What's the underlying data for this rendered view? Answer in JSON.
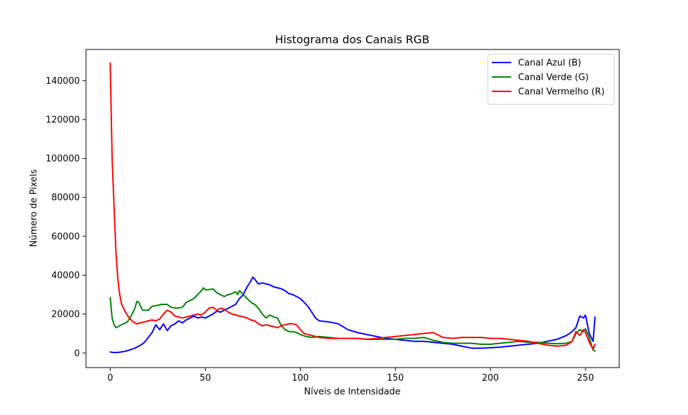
{
  "chart_data": {
    "type": "line",
    "title": "Histograma dos Canais RGB",
    "xlabel": "Níveis de Intensidade",
    "ylabel": "Número de Pixels",
    "xlim": [
      -12.75,
      267.75
    ],
    "ylim": [
      -7500,
      156000
    ],
    "xticks": [
      0,
      50,
      100,
      150,
      200,
      250
    ],
    "xtick_labels": [
      "0",
      "50",
      "100",
      "150",
      "200",
      "250"
    ],
    "yticks": [
      0,
      20000,
      40000,
      60000,
      80000,
      100000,
      120000,
      140000
    ],
    "ytick_labels": [
      "0",
      "20000",
      "40000",
      "60000",
      "80000",
      "100000",
      "120000",
      "140000"
    ],
    "grid": false,
    "legend_position": "top-right",
    "series": [
      {
        "name": "Canal Azul (B)",
        "color": "#0000ff",
        "points": [
          [
            0,
            500
          ],
          [
            2,
            200
          ],
          [
            5,
            400
          ],
          [
            8,
            900
          ],
          [
            10,
            1500
          ],
          [
            13,
            2500
          ],
          [
            16,
            4000
          ],
          [
            18,
            5500
          ],
          [
            20,
            8000
          ],
          [
            22,
            10500
          ],
          [
            24,
            14500
          ],
          [
            26,
            12000
          ],
          [
            28,
            15000
          ],
          [
            30,
            11500
          ],
          [
            32,
            14000
          ],
          [
            34,
            15000
          ],
          [
            36,
            16500
          ],
          [
            38,
            15500
          ],
          [
            40,
            17000
          ],
          [
            42,
            18000
          ],
          [
            44,
            19000
          ],
          [
            46,
            18000
          ],
          [
            48,
            18500
          ],
          [
            50,
            18000
          ],
          [
            52,
            19000
          ],
          [
            54,
            20000
          ],
          [
            56,
            21500
          ],
          [
            58,
            21000
          ],
          [
            60,
            22000
          ],
          [
            62,
            23000
          ],
          [
            64,
            24000
          ],
          [
            66,
            25000
          ],
          [
            68,
            28000
          ],
          [
            70,
            30000
          ],
          [
            72,
            34000
          ],
          [
            74,
            37000
          ],
          [
            75,
            39000
          ],
          [
            76,
            38000
          ],
          [
            78,
            35500
          ],
          [
            80,
            36000
          ],
          [
            82,
            35500
          ],
          [
            84,
            35000
          ],
          [
            86,
            34000
          ],
          [
            88,
            33500
          ],
          [
            90,
            33000
          ],
          [
            92,
            32000
          ],
          [
            94,
            30500
          ],
          [
            96,
            30000
          ],
          [
            98,
            29000
          ],
          [
            100,
            28000
          ],
          [
            102,
            26000
          ],
          [
            104,
            24000
          ],
          [
            106,
            21000
          ],
          [
            108,
            18000
          ],
          [
            110,
            16500
          ],
          [
            115,
            16000
          ],
          [
            120,
            15000
          ],
          [
            125,
            12000
          ],
          [
            130,
            10500
          ],
          [
            135,
            9500
          ],
          [
            140,
            8500
          ],
          [
            145,
            7500
          ],
          [
            150,
            7000
          ],
          [
            155,
            6500
          ],
          [
            160,
            6000
          ],
          [
            165,
            6000
          ],
          [
            170,
            5500
          ],
          [
            175,
            5000
          ],
          [
            180,
            4500
          ],
          [
            185,
            3500
          ],
          [
            190,
            2500
          ],
          [
            195,
            2500
          ],
          [
            200,
            2700
          ],
          [
            205,
            3000
          ],
          [
            210,
            3500
          ],
          [
            215,
            4000
          ],
          [
            220,
            4500
          ],
          [
            225,
            5000
          ],
          [
            230,
            6000
          ],
          [
            235,
            7000
          ],
          [
            240,
            9000
          ],
          [
            243,
            11000
          ],
          [
            245,
            13000
          ],
          [
            247,
            19000
          ],
          [
            249,
            18000
          ],
          [
            250,
            19500
          ],
          [
            252,
            10000
          ],
          [
            254,
            6000
          ],
          [
            255,
            18500
          ]
        ]
      },
      {
        "name": "Canal Verde (G)",
        "color": "#008000",
        "points": [
          [
            0,
            28500
          ],
          [
            1,
            18000
          ],
          [
            2,
            14500
          ],
          [
            3,
            13000
          ],
          [
            5,
            14000
          ],
          [
            7,
            15000
          ],
          [
            9,
            16000
          ],
          [
            11,
            19000
          ],
          [
            13,
            23000
          ],
          [
            14,
            26500
          ],
          [
            15,
            26000
          ],
          [
            17,
            22000
          ],
          [
            20,
            22000
          ],
          [
            22,
            24000
          ],
          [
            25,
            24500
          ],
          [
            27,
            25000
          ],
          [
            30,
            25000
          ],
          [
            32,
            23500
          ],
          [
            35,
            23000
          ],
          [
            38,
            23500
          ],
          [
            40,
            26000
          ],
          [
            42,
            27000
          ],
          [
            44,
            28000
          ],
          [
            46,
            30000
          ],
          [
            48,
            32000
          ],
          [
            49,
            33500
          ],
          [
            50,
            32500
          ],
          [
            52,
            32500
          ],
          [
            54,
            33000
          ],
          [
            56,
            31000
          ],
          [
            58,
            30000
          ],
          [
            60,
            29000
          ],
          [
            62,
            30000
          ],
          [
            64,
            30500
          ],
          [
            66,
            31500
          ],
          [
            67,
            30000
          ],
          [
            68,
            32000
          ],
          [
            70,
            30000
          ],
          [
            72,
            28000
          ],
          [
            74,
            26000
          ],
          [
            76,
            25000
          ],
          [
            78,
            23000
          ],
          [
            80,
            20000
          ],
          [
            82,
            18000
          ],
          [
            84,
            19500
          ],
          [
            86,
            18500
          ],
          [
            88,
            18000
          ],
          [
            90,
            14000
          ],
          [
            92,
            12000
          ],
          [
            94,
            11000
          ],
          [
            96,
            11000
          ],
          [
            98,
            10500
          ],
          [
            100,
            9500
          ],
          [
            103,
            8500
          ],
          [
            106,
            8000
          ],
          [
            110,
            8500
          ],
          [
            115,
            8000
          ],
          [
            120,
            7500
          ],
          [
            125,
            7500
          ],
          [
            130,
            7500
          ],
          [
            135,
            7000
          ],
          [
            140,
            7000
          ],
          [
            145,
            7000
          ],
          [
            150,
            7000
          ],
          [
            155,
            7500
          ],
          [
            160,
            7500
          ],
          [
            165,
            8000
          ],
          [
            170,
            6500
          ],
          [
            175,
            5500
          ],
          [
            180,
            5000
          ],
          [
            185,
            5000
          ],
          [
            190,
            5000
          ],
          [
            195,
            4500
          ],
          [
            200,
            4500
          ],
          [
            205,
            5000
          ],
          [
            210,
            5500
          ],
          [
            215,
            6000
          ],
          [
            220,
            5500
          ],
          [
            225,
            5500
          ],
          [
            230,
            5000
          ],
          [
            235,
            4800
          ],
          [
            240,
            5000
          ],
          [
            243,
            6000
          ],
          [
            245,
            10000
          ],
          [
            247,
            12000
          ],
          [
            249,
            11000
          ],
          [
            250,
            12500
          ],
          [
            252,
            8000
          ],
          [
            254,
            1500
          ],
          [
            255,
            1000
          ]
        ]
      },
      {
        "name": "Canal Vermelho (R)",
        "color": "#ff0000",
        "points": [
          [
            0,
            149000
          ],
          [
            1,
            100000
          ],
          [
            2,
            75000
          ],
          [
            3,
            52000
          ],
          [
            4,
            38000
          ],
          [
            5,
            30000
          ],
          [
            6,
            25000
          ],
          [
            8,
            21000
          ],
          [
            10,
            18000
          ],
          [
            12,
            16000
          ],
          [
            14,
            15000
          ],
          [
            16,
            15500
          ],
          [
            18,
            16000
          ],
          [
            20,
            16500
          ],
          [
            22,
            17000
          ],
          [
            24,
            16500
          ],
          [
            26,
            17500
          ],
          [
            28,
            20000
          ],
          [
            30,
            22000
          ],
          [
            32,
            21000
          ],
          [
            34,
            19000
          ],
          [
            36,
            18500
          ],
          [
            38,
            18000
          ],
          [
            40,
            18500
          ],
          [
            42,
            19000
          ],
          [
            44,
            19500
          ],
          [
            46,
            20000
          ],
          [
            48,
            19500
          ],
          [
            50,
            21000
          ],
          [
            52,
            23000
          ],
          [
            54,
            23500
          ],
          [
            56,
            22000
          ],
          [
            58,
            23000
          ],
          [
            60,
            22500
          ],
          [
            62,
            21000
          ],
          [
            64,
            20000
          ],
          [
            66,
            19500
          ],
          [
            68,
            19000
          ],
          [
            70,
            18500
          ],
          [
            72,
            18000
          ],
          [
            74,
            17000
          ],
          [
            76,
            16500
          ],
          [
            78,
            15000
          ],
          [
            80,
            14000
          ],
          [
            82,
            14500
          ],
          [
            84,
            14000
          ],
          [
            86,
            13500
          ],
          [
            88,
            13000
          ],
          [
            90,
            14000
          ],
          [
            92,
            14500
          ],
          [
            94,
            15000
          ],
          [
            96,
            15000
          ],
          [
            98,
            14500
          ],
          [
            100,
            12000
          ],
          [
            102,
            10000
          ],
          [
            104,
            9500
          ],
          [
            106,
            9000
          ],
          [
            110,
            8000
          ],
          [
            115,
            7500
          ],
          [
            120,
            7500
          ],
          [
            125,
            7500
          ],
          [
            130,
            7500
          ],
          [
            135,
            7000
          ],
          [
            140,
            7500
          ],
          [
            145,
            8000
          ],
          [
            150,
            8500
          ],
          [
            155,
            9000
          ],
          [
            160,
            9500
          ],
          [
            165,
            10000
          ],
          [
            170,
            10500
          ],
          [
            172,
            9500
          ],
          [
            175,
            8000
          ],
          [
            180,
            7500
          ],
          [
            185,
            8000
          ],
          [
            190,
            8000
          ],
          [
            195,
            8000
          ],
          [
            200,
            7500
          ],
          [
            205,
            7500
          ],
          [
            210,
            7000
          ],
          [
            215,
            6500
          ],
          [
            220,
            6000
          ],
          [
            225,
            5000
          ],
          [
            230,
            4000
          ],
          [
            235,
            3500
          ],
          [
            240,
            4000
          ],
          [
            243,
            6000
          ],
          [
            245,
            11000
          ],
          [
            247,
            9000
          ],
          [
            249,
            12000
          ],
          [
            250,
            10500
          ],
          [
            252,
            5500
          ],
          [
            254,
            2000
          ],
          [
            255,
            4500
          ]
        ]
      }
    ]
  }
}
